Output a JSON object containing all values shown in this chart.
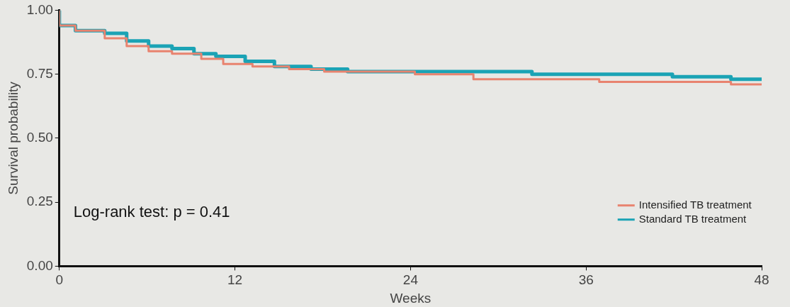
{
  "chart_data": {
    "type": "step",
    "xlabel": "Weeks",
    "ylabel": "Survival probability",
    "xlim": [
      0,
      48
    ],
    "xticks": [
      0,
      12,
      24,
      36,
      48
    ],
    "ylim": [
      0,
      1
    ],
    "yticks": [
      {
        "value": 0,
        "label": "0.00"
      },
      {
        "value": 0.25,
        "label": "0.25"
      },
      {
        "value": 0.5,
        "label": "0.50"
      },
      {
        "value": 0.75,
        "label": "0.75"
      },
      {
        "value": 1,
        "label": "1.00"
      }
    ],
    "grid": false,
    "legend": "bottom right",
    "marker": "none",
    "line_style": "solid",
    "annotations": [
      "Log-rank test: p = 0.41"
    ],
    "series": [
      {
        "name": "Intensified TB treatment",
        "color": "#e8836f",
        "x": [
          0,
          1.1,
          3.1,
          4.6,
          6.1,
          7.7,
          9.7,
          11.2,
          13.2,
          15.7,
          18.1,
          20.8,
          24.3,
          28.3,
          31.8,
          36.9,
          41.9,
          45.9,
          48
        ],
        "values": [
          1,
          0.94,
          0.92,
          0.89,
          0.86,
          0.84,
          0.83,
          0.81,
          0.79,
          0.78,
          0.77,
          0.76,
          0.76,
          0.75,
          0.73,
          0.73,
          0.72,
          0.72,
          0.71
        ]
      },
      {
        "name": "Standard TB treatment",
        "color": "#1ba3b5",
        "x": [
          0,
          1.1,
          3.1,
          4.6,
          6.1,
          7.7,
          9.2,
          10.7,
          12.7,
          14.7,
          17.2,
          19.7,
          22.3,
          26.8,
          32.3,
          36.9,
          41.9,
          45.9,
          48
        ],
        "values": [
          1,
          0.94,
          0.92,
          0.91,
          0.88,
          0.86,
          0.85,
          0.83,
          0.82,
          0.8,
          0.78,
          0.77,
          0.76,
          0.76,
          0.76,
          0.75,
          0.75,
          0.74,
          0.73
        ]
      }
    ]
  }
}
